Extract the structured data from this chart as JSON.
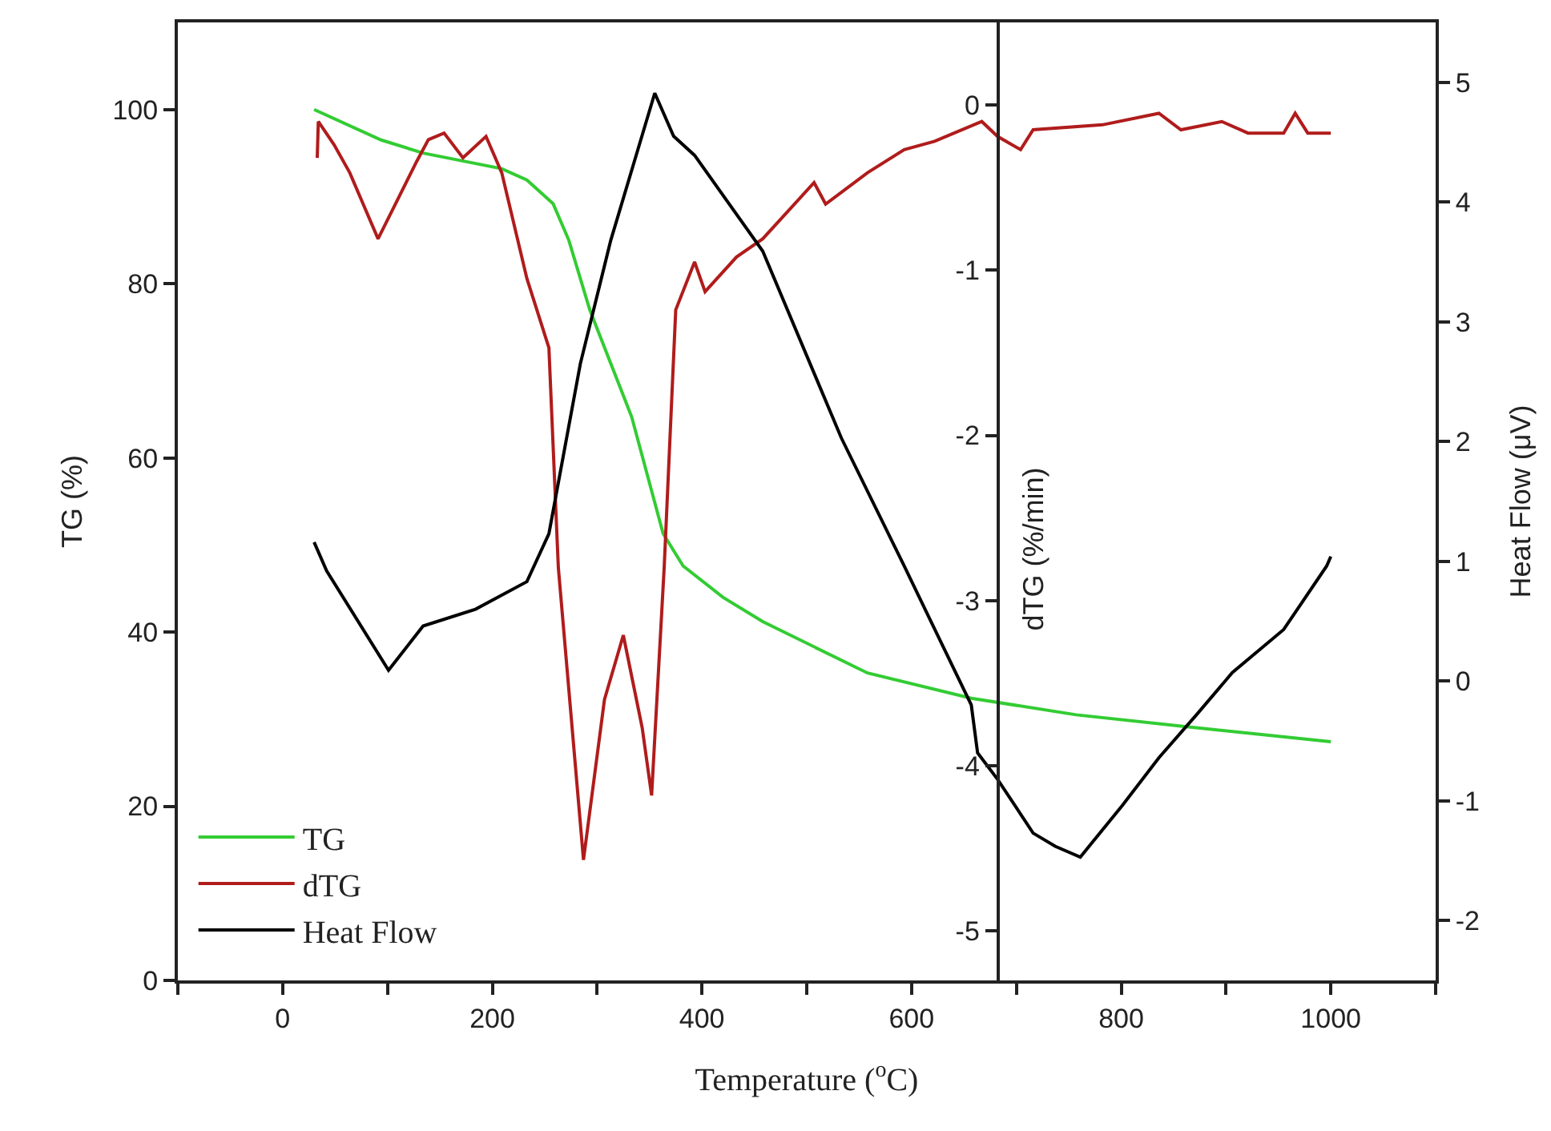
{
  "chart_data": {
    "type": "line",
    "xlabel": "Temperature ($^{o}$C)",
    "ylabel": "TG (%)",
    "y2label": "dTG (%/min)",
    "y3label": "Heat Flow (μV)",
    "xlim": [
      -100,
      1100
    ],
    "xticks": [
      {
        "value": -100,
        "label": null
      },
      0,
      {
        "value": 100,
        "label": null
      },
      200,
      {
        "value": 300,
        "label": null
      },
      400,
      {
        "value": 500,
        "label": null
      },
      600,
      {
        "value": 700,
        "label": null
      },
      800,
      {
        "value": 900,
        "label": null
      },
      1000,
      {
        "value": 1100,
        "label": null
      }
    ],
    "ylim": [
      0,
      110
    ],
    "yticks": [
      0,
      20,
      40,
      60,
      80,
      100
    ],
    "y2lim": [
      -5.3,
      0.5
    ],
    "y2ticks": [
      -5,
      -4,
      -3,
      -2,
      -1,
      0
    ],
    "y3lim": [
      -2.5,
      5.5
    ],
    "y3ticks": [
      -2,
      -1,
      0,
      1,
      2,
      3,
      4,
      5
    ],
    "legend": "bottom left",
    "marker": "none",
    "line_style": "solid",
    "series": [
      {
        "name": "TG",
        "color": "#33cc33",
        "x": [
          30,
          94,
          134,
          209,
          233,
          258,
          273,
          293,
          333,
          363,
          382,
          420,
          458,
          558,
          657,
          757,
          857,
          1000
        ],
        "values": [
          100,
          96.5,
          95,
          93.2,
          91.9,
          89.2,
          85,
          77,
          64.7,
          51.3,
          47.6,
          44,
          41.2,
          35.3,
          32.4,
          30.5,
          29.2,
          27.4
        ]
      },
      {
        "name": "dTG",
        "color": "#b01c1c",
        "axis": "y2",
        "x": [
          33,
          34,
          49,
          64,
          91,
          128,
          139,
          154,
          172,
          194,
          209,
          233,
          254,
          263,
          287,
          307,
          325,
          343,
          352,
          364,
          375,
          393,
          403,
          433,
          458,
          507,
          518,
          558,
          593,
          622,
          667,
          682,
          704,
          716,
          782,
          836,
          857,
          896,
          921,
          955,
          966,
          978,
          1000
        ],
        "values": [
          -0.32,
          -0.1,
          -0.24,
          -0.41,
          -0.81,
          -0.34,
          -0.21,
          -0.17,
          -0.32,
          -0.19,
          -0.41,
          -1.05,
          -1.47,
          -2.8,
          -4.57,
          -3.6,
          -3.21,
          -3.77,
          -4.18,
          -2.8,
          -1.24,
          -0.95,
          -1.13,
          -0.92,
          -0.81,
          -0.47,
          -0.6,
          -0.41,
          -0.27,
          -0.22,
          -0.1,
          -0.19,
          -0.27,
          -0.15,
          -0.12,
          -0.05,
          -0.15,
          -0.1,
          -0.17,
          -0.17,
          -0.05,
          -0.17,
          -0.17
        ]
      },
      {
        "name": "Heat Flow",
        "color": "#000000",
        "axis": "y3",
        "x": [
          30,
          42,
          101,
          134,
          184,
          233,
          254,
          284,
          313,
          355,
          373,
          393,
          458,
          533,
          593,
          657,
          663,
          682,
          716,
          737,
          761,
          801,
          836,
          872,
          906,
          955,
          996,
          1000
        ],
        "values": [
          1.16,
          0.92,
          0.09,
          0.46,
          0.6,
          0.83,
          1.23,
          2.65,
          3.68,
          4.91,
          4.55,
          4.39,
          3.59,
          2.03,
          0.96,
          -0.2,
          -0.6,
          -0.82,
          -1.27,
          -1.38,
          -1.47,
          -1.04,
          -0.64,
          -0.28,
          0.07,
          0.43,
          0.96,
          1.04
        ]
      }
    ]
  }
}
